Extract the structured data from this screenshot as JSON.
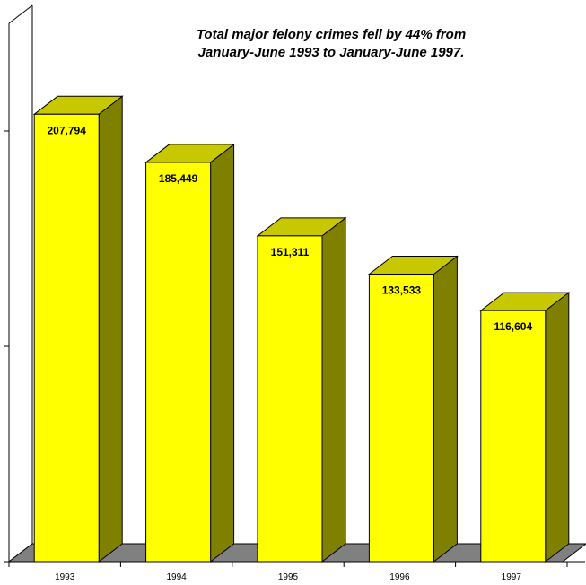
{
  "chart_data": {
    "type": "bar",
    "title": "",
    "xlabel": "",
    "ylabel": "",
    "annotation": [
      "Total major felony crimes fell by 44% from",
      "January-June 1993 to January-June 1997."
    ],
    "categories": [
      "1993",
      "1994",
      "1995",
      "1996",
      "1997"
    ],
    "values": [
      207794,
      185449,
      151311,
      133533,
      116604
    ],
    "value_labels": [
      "207,794",
      "185,449",
      "151,311",
      "133,533",
      "116,604"
    ],
    "ylim": [
      0,
      250000
    ],
    "y_ticks": [
      0,
      100000,
      200000
    ],
    "grid": false,
    "legend": "none",
    "style": "3d",
    "colors": {
      "bar_front": "#ffff00",
      "bar_top": "#c8c800",
      "bar_side": "#808000",
      "floor": "#808080",
      "axis": "#000000"
    }
  }
}
